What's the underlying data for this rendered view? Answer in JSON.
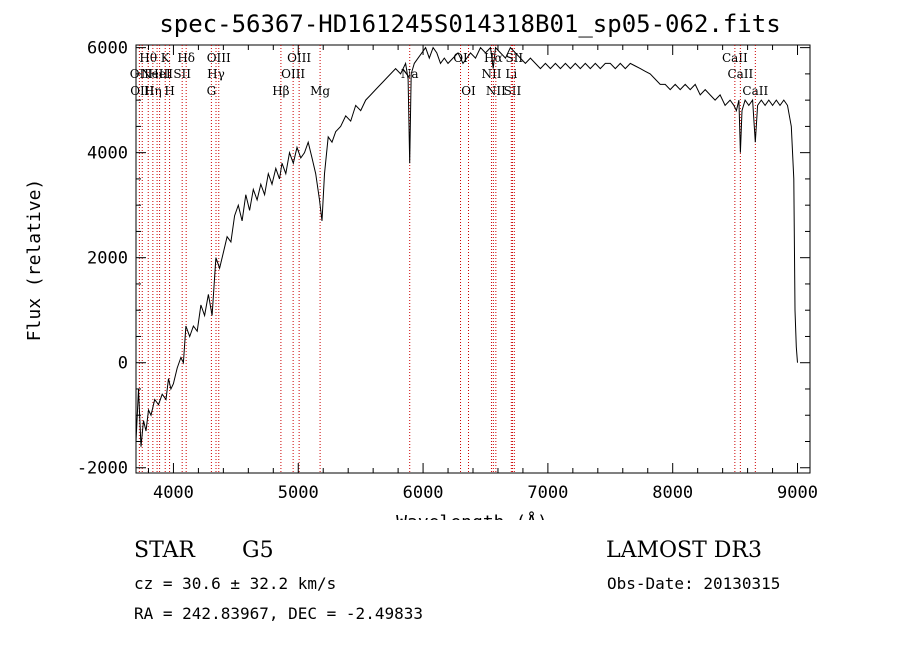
{
  "chart_data": {
    "type": "line",
    "title": "spec-56367-HD161245S014318B01_sp05-062.fits",
    "xlabel": "Wavelength (Å)",
    "ylabel": "Flux (relative)",
    "xlim": [
      3700,
      9100
    ],
    "ylim": [
      -2100,
      6050
    ],
    "xticks": [
      4000,
      5000,
      6000,
      7000,
      8000,
      9000
    ],
    "yticks": [
      -2000,
      0,
      2000,
      4000,
      6000
    ],
    "line_color": "#000000",
    "marker_color": "#cc0000",
    "series": [
      {
        "points": [
          [
            3700,
            -1500
          ],
          [
            3720,
            -500
          ],
          [
            3740,
            -1600
          ],
          [
            3760,
            -1100
          ],
          [
            3780,
            -1300
          ],
          [
            3800,
            -900
          ],
          [
            3820,
            -1000
          ],
          [
            3850,
            -700
          ],
          [
            3880,
            -800
          ],
          [
            3910,
            -600
          ],
          [
            3940,
            -700
          ],
          [
            3960,
            -300
          ],
          [
            3980,
            -500
          ],
          [
            4000,
            -400
          ],
          [
            4030,
            -100
          ],
          [
            4060,
            100
          ],
          [
            4080,
            0
          ],
          [
            4100,
            700
          ],
          [
            4130,
            500
          ],
          [
            4160,
            700
          ],
          [
            4190,
            600
          ],
          [
            4220,
            1100
          ],
          [
            4250,
            900
          ],
          [
            4280,
            1300
          ],
          [
            4310,
            900
          ],
          [
            4340,
            2000
          ],
          [
            4370,
            1800
          ],
          [
            4400,
            2100
          ],
          [
            4430,
            2400
          ],
          [
            4460,
            2300
          ],
          [
            4490,
            2800
          ],
          [
            4520,
            3000
          ],
          [
            4550,
            2700
          ],
          [
            4580,
            3200
          ],
          [
            4610,
            2900
          ],
          [
            4640,
            3300
          ],
          [
            4670,
            3100
          ],
          [
            4700,
            3400
          ],
          [
            4730,
            3200
          ],
          [
            4760,
            3600
          ],
          [
            4790,
            3400
          ],
          [
            4820,
            3700
          ],
          [
            4850,
            3500
          ],
          [
            4870,
            3800
          ],
          [
            4900,
            3600
          ],
          [
            4930,
            4000
          ],
          [
            4960,
            3800
          ],
          [
            4990,
            4100
          ],
          [
            5020,
            3900
          ],
          [
            5050,
            4000
          ],
          [
            5080,
            4200
          ],
          [
            5110,
            3900
          ],
          [
            5140,
            3600
          ],
          [
            5170,
            3100
          ],
          [
            5190,
            2700
          ],
          [
            5210,
            3600
          ],
          [
            5240,
            4300
          ],
          [
            5270,
            4200
          ],
          [
            5300,
            4400
          ],
          [
            5340,
            4500
          ],
          [
            5380,
            4700
          ],
          [
            5420,
            4600
          ],
          [
            5460,
            4900
          ],
          [
            5500,
            4800
          ],
          [
            5540,
            5000
          ],
          [
            5580,
            5100
          ],
          [
            5620,
            5200
          ],
          [
            5660,
            5300
          ],
          [
            5700,
            5400
          ],
          [
            5740,
            5500
          ],
          [
            5780,
            5600
          ],
          [
            5820,
            5500
          ],
          [
            5860,
            5700
          ],
          [
            5880,
            5400
          ],
          [
            5893,
            3800
          ],
          [
            5905,
            5500
          ],
          [
            5930,
            5700
          ],
          [
            5960,
            5800
          ],
          [
            5990,
            5900
          ],
          [
            6020,
            6000
          ],
          [
            6050,
            5800
          ],
          [
            6080,
            6000
          ],
          [
            6110,
            5900
          ],
          [
            6140,
            5700
          ],
          [
            6170,
            5800
          ],
          [
            6200,
            5700
          ],
          [
            6240,
            5800
          ],
          [
            6280,
            5900
          ],
          [
            6320,
            5700
          ],
          [
            6350,
            5800
          ],
          [
            6380,
            5900
          ],
          [
            6420,
            5800
          ],
          [
            6460,
            6000
          ],
          [
            6500,
            5900
          ],
          [
            6540,
            6000
          ],
          [
            6562,
            5600
          ],
          [
            6580,
            6000
          ],
          [
            6620,
            5900
          ],
          [
            6660,
            5800
          ],
          [
            6700,
            6000
          ],
          [
            6740,
            5900
          ],
          [
            6780,
            5800
          ],
          [
            6820,
            5700
          ],
          [
            6860,
            5800
          ],
          [
            6900,
            5700
          ],
          [
            6940,
            5600
          ],
          [
            6980,
            5700
          ],
          [
            7020,
            5600
          ],
          [
            7060,
            5700
          ],
          [
            7100,
            5600
          ],
          [
            7140,
            5700
          ],
          [
            7180,
            5600
          ],
          [
            7220,
            5700
          ],
          [
            7260,
            5600
          ],
          [
            7300,
            5700
          ],
          [
            7340,
            5600
          ],
          [
            7380,
            5700
          ],
          [
            7420,
            5600
          ],
          [
            7460,
            5700
          ],
          [
            7500,
            5700
          ],
          [
            7540,
            5600
          ],
          [
            7580,
            5700
          ],
          [
            7620,
            5600
          ],
          [
            7660,
            5700
          ],
          [
            7700,
            5650
          ],
          [
            7740,
            5600
          ],
          [
            7780,
            5550
          ],
          [
            7820,
            5500
          ],
          [
            7860,
            5400
          ],
          [
            7900,
            5300
          ],
          [
            7940,
            5300
          ],
          [
            7980,
            5200
          ],
          [
            8020,
            5300
          ],
          [
            8060,
            5200
          ],
          [
            8100,
            5300
          ],
          [
            8140,
            5200
          ],
          [
            8180,
            5300
          ],
          [
            8220,
            5100
          ],
          [
            8260,
            5200
          ],
          [
            8300,
            5100
          ],
          [
            8340,
            5000
          ],
          [
            8380,
            5100
          ],
          [
            8420,
            4900
          ],
          [
            8460,
            5000
          ],
          [
            8490,
            4900
          ],
          [
            8510,
            4800
          ],
          [
            8530,
            5000
          ],
          [
            8542,
            4000
          ],
          [
            8555,
            4800
          ],
          [
            8580,
            5000
          ],
          [
            8610,
            4900
          ],
          [
            8640,
            5000
          ],
          [
            8662,
            4200
          ],
          [
            8680,
            4900
          ],
          [
            8710,
            5000
          ],
          [
            8740,
            4900
          ],
          [
            8770,
            5000
          ],
          [
            8800,
            4900
          ],
          [
            8830,
            5000
          ],
          [
            8860,
            4900
          ],
          [
            8890,
            5000
          ],
          [
            8920,
            4900
          ],
          [
            8950,
            4500
          ],
          [
            8970,
            3500
          ],
          [
            8980,
            1000
          ],
          [
            8990,
            300
          ],
          [
            9000,
            0
          ]
        ]
      }
    ],
    "line_markers": [
      {
        "wl": 3727,
        "label": "OII",
        "row": 1
      },
      {
        "wl": 3750,
        "label": "OIII",
        "row": 2
      },
      {
        "wl": 3798,
        "label": "Hθ",
        "row": 0
      },
      {
        "wl": 3835,
        "label": "Hη",
        "row": 2
      },
      {
        "wl": 3869,
        "label": "NeIII",
        "row": 1
      },
      {
        "wl": 3889,
        "label": "HeI",
        "row": 1
      },
      {
        "wl": 3934,
        "label": "K",
        "row": 0
      },
      {
        "wl": 3969,
        "label": "H",
        "row": 2
      },
      {
        "wl": 4070,
        "label": "SII",
        "row": 1
      },
      {
        "wl": 4102,
        "label": "Hδ",
        "row": 0
      },
      {
        "wl": 4304,
        "label": "G",
        "row": 2
      },
      {
        "wl": 4341,
        "label": "Hγ",
        "row": 1
      },
      {
        "wl": 4363,
        "label": "OIII",
        "row": 0
      },
      {
        "wl": 4861,
        "label": "Hβ",
        "row": 2
      },
      {
        "wl": 4959,
        "label": "OIII",
        "row": 1
      },
      {
        "wl": 5007,
        "label": "OIII",
        "row": 0
      },
      {
        "wl": 5175,
        "label": "Mg",
        "row": 2
      },
      {
        "wl": 5893,
        "label": "Na",
        "row": 1
      },
      {
        "wl": 6300,
        "label": "OI",
        "row": 0
      },
      {
        "wl": 6364,
        "label": "OI",
        "row": 2
      },
      {
        "wl": 6548,
        "label": "NII",
        "row": 1
      },
      {
        "wl": 6563,
        "label": "Hα",
        "row": 0
      },
      {
        "wl": 6583,
        "label": "NII",
        "row": 2
      },
      {
        "wl": 6707,
        "label": "Li",
        "row": 1
      },
      {
        "wl": 6716,
        "label": "SII",
        "row": 2
      },
      {
        "wl": 6731,
        "label": "SII",
        "row": 0
      },
      {
        "wl": 8498,
        "label": "CaII",
        "row": 0
      },
      {
        "wl": 8542,
        "label": "CaII",
        "row": 1
      },
      {
        "wl": 8662,
        "label": "CaII",
        "row": 2
      }
    ]
  },
  "info": {
    "class_label": "STAR",
    "subclass": "G5",
    "survey": "LAMOST DR3",
    "velocity": "cz = 30.6 ± 32.2 km/s",
    "obs_date": "Obs-Date: 20130315",
    "coords": "RA = 242.83967, DEC =  -2.49833"
  }
}
